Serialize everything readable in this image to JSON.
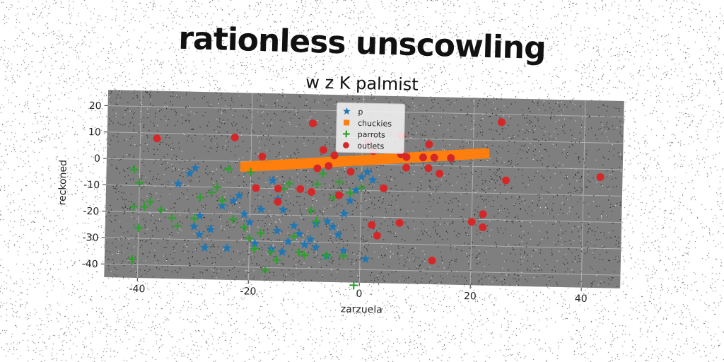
{
  "title": "rationless unscowling",
  "subtitle": "w z K palmist",
  "chart_data": {
    "type": "scatter",
    "title": "w z K palmist",
    "xlabel": "zarzuela",
    "ylabel": "reckoned",
    "xlim": [
      -46,
      47
    ],
    "ylim": [
      -45,
      26
    ],
    "xticks": [
      -40,
      -20,
      0,
      20,
      40
    ],
    "yticks": [
      20,
      10,
      0,
      -10,
      -20,
      -30,
      -40
    ],
    "grid": true,
    "legend_position": "top-center",
    "series": [
      {
        "name": "p",
        "marker": "star",
        "color": "#1f77b4",
        "points": [
          [
            -33,
            -9
          ],
          [
            -31,
            -5
          ],
          [
            -30,
            -3
          ],
          [
            -29,
            -21
          ],
          [
            -30,
            -25
          ],
          [
            -29,
            -28
          ],
          [
            -28,
            -33
          ],
          [
            -27,
            -26
          ],
          [
            -25,
            -17
          ],
          [
            -23,
            -15
          ],
          [
            -21,
            -20
          ],
          [
            -20,
            -23
          ],
          [
            -24,
            -33
          ],
          [
            -22,
            -13
          ],
          [
            -17,
            -2
          ],
          [
            -16,
            -7
          ],
          [
            -15,
            -14
          ],
          [
            -14,
            -18
          ],
          [
            -12,
            -24
          ],
          [
            -11,
            -27
          ],
          [
            -10,
            -31
          ],
          [
            -9,
            -29
          ],
          [
            -8,
            -32
          ],
          [
            -6,
            -22
          ],
          [
            -5,
            -24
          ],
          [
            -4,
            -27
          ],
          [
            -3,
            -19
          ],
          [
            -2,
            -14
          ],
          [
            -1,
            -10
          ],
          [
            0,
            -5
          ],
          [
            1,
            -3
          ],
          [
            2,
            -6
          ],
          [
            -3,
            -33
          ],
          [
            -6,
            -35
          ],
          [
            -13,
            -30
          ],
          [
            -14,
            -34
          ],
          [
            -16,
            -33
          ],
          [
            -19,
            -31
          ],
          [
            -8,
            -23
          ],
          [
            -18,
            -18
          ],
          [
            -15,
            -26
          ],
          [
            1,
            -36
          ]
        ]
      },
      {
        "name": "chuckies",
        "marker": "square",
        "color": "#ff7f0e",
        "points": [
          [
            -21,
            -2
          ],
          [
            22,
            5
          ]
        ]
      },
      {
        "name": "parrots",
        "marker": "plus",
        "color": "#2ca02c",
        "points": [
          [
            -41,
            -4
          ],
          [
            -40,
            -9
          ],
          [
            -41,
            -18
          ],
          [
            -39,
            -18
          ],
          [
            -38,
            -16
          ],
          [
            -36,
            -19
          ],
          [
            -34,
            -22
          ],
          [
            -40,
            -26
          ],
          [
            -41,
            -38
          ],
          [
            -33,
            -25
          ],
          [
            -30,
            -22
          ],
          [
            -29,
            -14
          ],
          [
            -27,
            -12
          ],
          [
            -26,
            -10
          ],
          [
            -25,
            -15
          ],
          [
            -23,
            -22
          ],
          [
            -21,
            -25
          ],
          [
            -20,
            -29
          ],
          [
            -19,
            -33
          ],
          [
            -18,
            -27
          ],
          [
            -17,
            -41
          ],
          [
            -16,
            -34
          ],
          [
            -14,
            -10
          ],
          [
            -13,
            -8
          ],
          [
            -12,
            -28
          ],
          [
            -11,
            -34
          ],
          [
            -10,
            -35
          ],
          [
            -9,
            -18
          ],
          [
            -8,
            -22
          ],
          [
            -7,
            -4
          ],
          [
            -6,
            -35
          ],
          [
            -5,
            -13
          ],
          [
            -4,
            -7
          ],
          [
            -3,
            -35
          ],
          [
            -2,
            -11
          ],
          [
            -1,
            -46
          ],
          [
            0,
            -9
          ],
          [
            -8,
            -8
          ],
          [
            -20,
            -4
          ],
          [
            -24,
            -3
          ],
          [
            -15,
            -37
          ]
        ]
      },
      {
        "name": "outlets",
        "marker": "circle",
        "color": "#d62728",
        "points": [
          [
            -37,
            8
          ],
          [
            -23,
            9
          ],
          [
            -18,
            2
          ],
          [
            -19,
            -10
          ],
          [
            -15,
            -10
          ],
          [
            -15,
            -15
          ],
          [
            -11,
            -10
          ],
          [
            -9,
            -11
          ],
          [
            -8,
            -2
          ],
          [
            -7,
            5
          ],
          [
            -6,
            -1
          ],
          [
            -5,
            3
          ],
          [
            -9,
            15
          ],
          [
            -4,
            -12
          ],
          [
            -2,
            -3
          ],
          [
            1,
            8
          ],
          [
            2,
            5
          ],
          [
            4,
            -9
          ],
          [
            2,
            -23
          ],
          [
            3,
            -27
          ],
          [
            7,
            -22
          ],
          [
            8,
            -1
          ],
          [
            7,
            11
          ],
          [
            8,
            3
          ],
          [
            12,
            -1
          ],
          [
            13,
            3
          ],
          [
            12,
            8
          ],
          [
            13,
            -36
          ],
          [
            16,
            3
          ],
          [
            20,
            -21
          ],
          [
            22,
            -18
          ],
          [
            22,
            -23
          ],
          [
            25,
            17
          ],
          [
            26,
            -5
          ],
          [
            43,
            -3
          ],
          [
            14,
            -3
          ],
          [
            11,
            3
          ],
          [
            7,
            4
          ]
        ]
      }
    ]
  }
}
